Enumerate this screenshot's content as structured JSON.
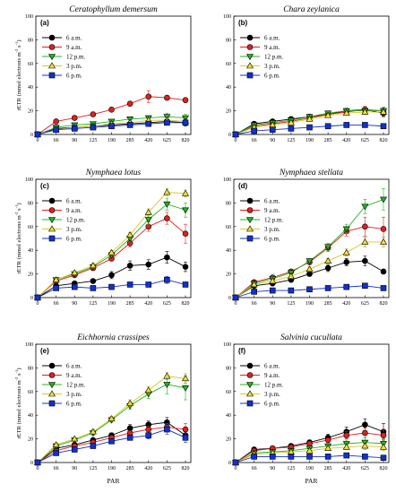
{
  "figure": {
    "ylabel": "rETR (mmol electrons m-2 s-1)",
    "xlabel": "PAR"
  },
  "chart_data": [
    {
      "type": "line",
      "panel": "(a)",
      "title": "Ceratophyllum demersum",
      "x": [
        0,
        66,
        90,
        125,
        190,
        285,
        420,
        625,
        820
      ],
      "ylim": [
        0,
        100
      ],
      "yticks": [
        0,
        20,
        40,
        60,
        80,
        100
      ],
      "xlabel": "",
      "ylabel": "rETR (mmol electrons m-2 s-1)",
      "legend": "top-left",
      "series": [
        {
          "name": "6 a.m.",
          "color": "#000000",
          "marker": "circle",
          "values": [
            0,
            5,
            6,
            7,
            8,
            9,
            10,
            11,
            10
          ],
          "errors": [
            0,
            1,
            1,
            1,
            1,
            1,
            2,
            3,
            3
          ]
        },
        {
          "name": "9 a.m.",
          "color": "#e02020",
          "marker": "circle",
          "values": [
            0,
            11,
            14,
            17,
            21,
            26,
            32,
            31,
            29
          ],
          "errors": [
            0,
            1,
            1,
            1,
            1,
            2,
            5,
            2,
            2
          ]
        },
        {
          "name": "12 p.m.",
          "color": "#22b422",
          "marker": "triangle-down",
          "values": [
            0,
            6,
            8,
            9,
            11,
            13,
            14,
            15,
            14
          ],
          "errors": [
            0,
            1,
            1,
            1,
            1,
            2,
            2,
            3,
            3
          ]
        },
        {
          "name": "3 p.m.",
          "color": "#f0e030",
          "marker": "triangle-up",
          "values": [
            0,
            4,
            6,
            7,
            9,
            10,
            12,
            12,
            11
          ],
          "errors": [
            0,
            1,
            1,
            1,
            1,
            1,
            2,
            2,
            2
          ]
        },
        {
          "name": "6 p.m.",
          "color": "#1030d0",
          "marker": "square",
          "values": [
            0,
            4,
            5,
            6,
            7,
            8,
            9,
            10,
            10
          ],
          "errors": [
            0,
            1,
            1,
            1,
            1,
            1,
            1,
            2,
            2
          ]
        }
      ]
    },
    {
      "type": "line",
      "panel": "(b)",
      "title": "Chara zeylanica",
      "x": [
        0,
        66,
        90,
        125,
        190,
        285,
        420,
        625,
        820
      ],
      "ylim": [
        0,
        100
      ],
      "yticks": [
        0,
        20,
        40,
        60,
        80,
        100
      ],
      "xlabel": "",
      "ylabel": "",
      "legend": "top-left",
      "series": [
        {
          "name": "6 a.m.",
          "color": "#000000",
          "marker": "circle",
          "values": [
            0,
            9,
            11,
            13,
            15,
            17,
            20,
            21,
            18
          ],
          "errors": [
            0,
            1,
            1,
            1,
            1,
            1,
            2,
            2,
            3
          ]
        },
        {
          "name": "9 a.m.",
          "color": "#e02020",
          "marker": "circle",
          "values": [
            0,
            7,
            9,
            11,
            14,
            17,
            19,
            21,
            20
          ],
          "errors": [
            0,
            1,
            1,
            1,
            1,
            1,
            2,
            3,
            3
          ]
        },
        {
          "name": "12 p.m.",
          "color": "#22b422",
          "marker": "triangle-down",
          "values": [
            0,
            8,
            10,
            12,
            15,
            18,
            20,
            20,
            20
          ],
          "errors": [
            0,
            1,
            1,
            1,
            1,
            2,
            2,
            3,
            3
          ]
        },
        {
          "name": "3 p.m.",
          "color": "#f0e030",
          "marker": "triangle-up",
          "values": [
            0,
            6,
            8,
            10,
            13,
            16,
            18,
            19,
            19
          ],
          "errors": [
            0,
            1,
            1,
            1,
            1,
            1,
            2,
            2,
            2
          ]
        },
        {
          "name": "6 p.m.",
          "color": "#1030d0",
          "marker": "square",
          "values": [
            0,
            3,
            4,
            5,
            6,
            7,
            8,
            8,
            7
          ],
          "errors": [
            0,
            1,
            1,
            1,
            1,
            1,
            1,
            1,
            1
          ]
        }
      ]
    },
    {
      "type": "line",
      "panel": "(c)",
      "title": "Nymphaea lotus",
      "x": [
        0,
        66,
        90,
        125,
        190,
        285,
        420,
        625,
        820
      ],
      "ylim": [
        0,
        100
      ],
      "yticks": [
        0,
        20,
        40,
        60,
        80,
        100
      ],
      "xlabel": "",
      "ylabel": "rETR (mmol electrons m-2 s-1)",
      "legend": "top-left",
      "series": [
        {
          "name": "6 a.m.",
          "color": "#000000",
          "marker": "circle",
          "values": [
            0,
            10,
            12,
            14,
            19,
            27,
            28,
            34,
            26
          ],
          "errors": [
            0,
            1,
            1,
            1,
            3,
            4,
            4,
            5,
            4
          ]
        },
        {
          "name": "9 a.m.",
          "color": "#e02020",
          "marker": "circle",
          "values": [
            0,
            14,
            19,
            25,
            33,
            46,
            60,
            67,
            54
          ],
          "errors": [
            0,
            1,
            1,
            2,
            2,
            3,
            4,
            5,
            8
          ]
        },
        {
          "name": "12 p.m.",
          "color": "#22b422",
          "marker": "triangle-down",
          "values": [
            0,
            15,
            20,
            26,
            36,
            50,
            66,
            79,
            74
          ],
          "errors": [
            0,
            1,
            1,
            2,
            2,
            3,
            4,
            5,
            6
          ]
        },
        {
          "name": "3 p.m.",
          "color": "#f0e030",
          "marker": "triangle-up",
          "values": [
            0,
            15,
            21,
            27,
            38,
            53,
            72,
            89,
            88
          ],
          "errors": [
            0,
            1,
            1,
            2,
            2,
            2,
            3,
            3,
            3
          ]
        },
        {
          "name": "6 p.m.",
          "color": "#1030d0",
          "marker": "square",
          "values": [
            0,
            8,
            9,
            8,
            9,
            11,
            11,
            15,
            11
          ],
          "errors": [
            0,
            1,
            1,
            1,
            1,
            1,
            1,
            3,
            2
          ]
        }
      ]
    },
    {
      "type": "line",
      "panel": "(d)",
      "title": "Nymphaea stellata",
      "x": [
        0,
        66,
        90,
        125,
        190,
        285,
        420,
        625,
        820
      ],
      "ylim": [
        0,
        100
      ],
      "yticks": [
        0,
        20,
        40,
        60,
        80,
        100
      ],
      "xlabel": "",
      "ylabel": "",
      "legend": "top-left",
      "series": [
        {
          "name": "6 a.m.",
          "color": "#000000",
          "marker": "circle",
          "values": [
            0,
            10,
            12,
            15,
            20,
            25,
            30,
            31,
            22
          ],
          "errors": [
            0,
            1,
            1,
            1,
            2,
            3,
            3,
            4,
            2
          ]
        },
        {
          "name": "9 a.m.",
          "color": "#e02020",
          "marker": "circle",
          "values": [
            0,
            13,
            17,
            22,
            30,
            42,
            56,
            60,
            58
          ],
          "errors": [
            0,
            1,
            1,
            2,
            2,
            3,
            4,
            8,
            10
          ]
        },
        {
          "name": "12 p.m.",
          "color": "#22b422",
          "marker": "triangle-down",
          "values": [
            0,
            12,
            16,
            21,
            31,
            43,
            58,
            77,
            83
          ],
          "errors": [
            0,
            1,
            1,
            2,
            2,
            3,
            4,
            6,
            9
          ]
        },
        {
          "name": "3 p.m.",
          "color": "#f0e030",
          "marker": "triangle-up",
          "values": [
            0,
            11,
            14,
            18,
            24,
            31,
            38,
            47,
            47
          ],
          "errors": [
            0,
            1,
            1,
            1,
            2,
            2,
            3,
            4,
            4
          ]
        },
        {
          "name": "6 p.m.",
          "color": "#1030d0",
          "marker": "square",
          "values": [
            0,
            5,
            6,
            6,
            7,
            8,
            9,
            10,
            8
          ],
          "errors": [
            0,
            1,
            1,
            1,
            1,
            1,
            1,
            1,
            1
          ]
        }
      ]
    },
    {
      "type": "line",
      "panel": "(e)",
      "title": "Eichhornia crassipes",
      "x": [
        0,
        66,
        90,
        125,
        190,
        285,
        420,
        625,
        820
      ],
      "ylim": [
        0,
        100
      ],
      "yticks": [
        0,
        20,
        40,
        60,
        80,
        100
      ],
      "xlabel": "PAR",
      "ylabel": "rETR (mmol electrons m-2 s-1)",
      "legend": "top-left",
      "series": [
        {
          "name": "6 a.m.",
          "color": "#000000",
          "marker": "circle",
          "values": [
            0,
            12,
            15,
            19,
            23,
            29,
            32,
            34,
            23
          ],
          "errors": [
            0,
            1,
            1,
            1,
            2,
            3,
            3,
            4,
            3
          ]
        },
        {
          "name": "9 a.m.",
          "color": "#e02020",
          "marker": "circle",
          "values": [
            0,
            10,
            14,
            17,
            21,
            25,
            28,
            30,
            28
          ],
          "errors": [
            0,
            1,
            1,
            1,
            2,
            2,
            3,
            3,
            5
          ]
        },
        {
          "name": "12 p.m.",
          "color": "#22b422",
          "marker": "triangle-down",
          "values": [
            0,
            14,
            19,
            25,
            36,
            48,
            58,
            66,
            63
          ],
          "errors": [
            0,
            1,
            1,
            2,
            2,
            3,
            4,
            8,
            10
          ]
        },
        {
          "name": "3 p.m.",
          "color": "#f0e030",
          "marker": "triangle-up",
          "values": [
            0,
            15,
            20,
            26,
            37,
            50,
            61,
            73,
            71
          ],
          "errors": [
            0,
            1,
            1,
            2,
            2,
            3,
            3,
            3,
            4
          ]
        },
        {
          "name": "6 p.m.",
          "color": "#1030d0",
          "marker": "square",
          "values": [
            0,
            8,
            11,
            14,
            18,
            21,
            23,
            28,
            21
          ],
          "errors": [
            0,
            1,
            1,
            1,
            2,
            2,
            3,
            4,
            4
          ]
        }
      ]
    },
    {
      "type": "line",
      "panel": "(f)",
      "title": "Salvinia cucullata",
      "x": [
        0,
        66,
        90,
        125,
        190,
        285,
        420,
        625,
        820
      ],
      "ylim": [
        0,
        100
      ],
      "yticks": [
        0,
        20,
        40,
        60,
        80,
        100
      ],
      "xlabel": "PAR",
      "ylabel": "",
      "legend": "top-left",
      "series": [
        {
          "name": "6 a.m.",
          "color": "#000000",
          "marker": "circle",
          "values": [
            0,
            11,
            12,
            14,
            17,
            21,
            26,
            32,
            26
          ],
          "errors": [
            0,
            1,
            1,
            1,
            2,
            3,
            4,
            5,
            7
          ]
        },
        {
          "name": "9 a.m.",
          "color": "#e02020",
          "marker": "circle",
          "values": [
            0,
            10,
            12,
            13,
            16,
            19,
            23,
            25,
            23
          ],
          "errors": [
            0,
            1,
            1,
            1,
            2,
            2,
            3,
            4,
            5
          ]
        },
        {
          "name": "12 p.m.",
          "color": "#22b422",
          "marker": "triangle-down",
          "values": [
            0,
            8,
            9,
            10,
            12,
            14,
            16,
            17,
            16
          ],
          "errors": [
            0,
            1,
            1,
            1,
            2,
            2,
            3,
            4,
            4
          ]
        },
        {
          "name": "3 p.m.",
          "color": "#f0e030",
          "marker": "triangle-up",
          "values": [
            0,
            7,
            8,
            9,
            10,
            12,
            13,
            14,
            13
          ],
          "errors": [
            0,
            1,
            1,
            1,
            1,
            2,
            2,
            3,
            3
          ]
        },
        {
          "name": "6 p.m.",
          "color": "#1030d0",
          "marker": "square",
          "values": [
            0,
            5,
            5,
            5,
            5,
            5,
            6,
            5,
            4
          ],
          "errors": [
            0,
            1,
            1,
            1,
            1,
            1,
            1,
            1,
            1
          ]
        }
      ]
    }
  ]
}
